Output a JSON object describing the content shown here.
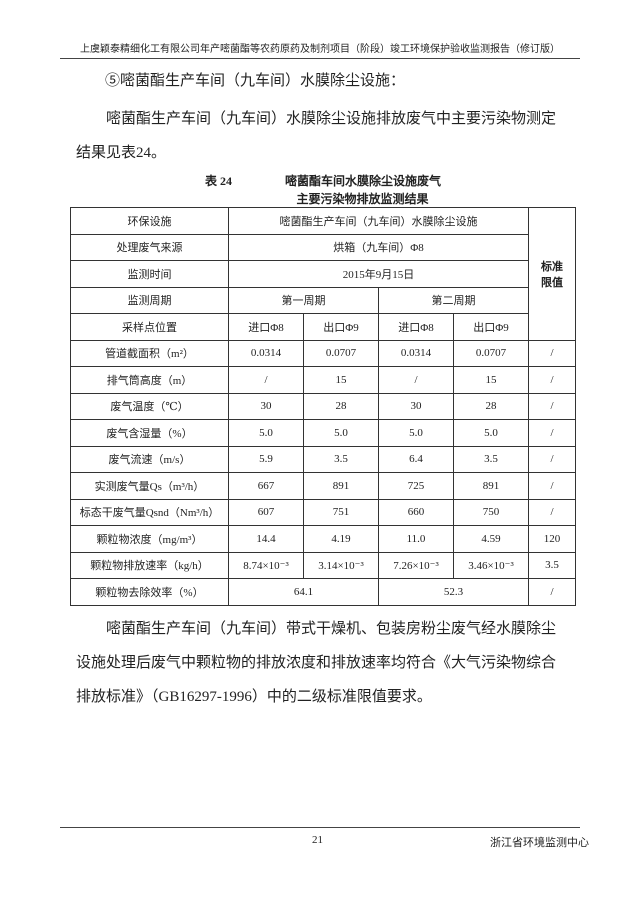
{
  "header": {
    "title": "上虞颖泰精细化工有限公司年产嘧菌酯等农药原药及制剂项目（阶段）竣工环境保护验收监测报告（修订版）"
  },
  "section": {
    "heading": "⑤嘧菌酯生产车间（九车间）水膜除尘设施：",
    "intro": "嘧菌酯生产车间（九车间）水膜除尘设施排放废气中主要污染物测定结果见表24。",
    "caption_no": "表 24",
    "caption_line1": "嘧菌酯车间水膜除尘设施废气",
    "caption_line2": "主要污染物排放监测结果",
    "conclusion": "嘧菌酯生产车间（九车间）带式干燥机、包装房粉尘废气经水膜除尘设施处理后废气中颗粒物的排放浓度和排放速率均符合《大气污染物综合排放标准》（GB16297-1996）中的二级标准限值要求。"
  },
  "table": {
    "std_header": "标准限值",
    "facility": [
      "环保设施",
      "嘧菌酯生产车间（九车间）水膜除尘设施"
    ],
    "source": [
      "处理废气来源",
      "烘箱（九车间）Φ8"
    ],
    "time": [
      "监测时间",
      "2015年9月15日"
    ],
    "period": [
      "监测周期",
      "第一周期",
      "第二周期"
    ],
    "points": [
      "采样点位置",
      "进口Φ8",
      "出口Φ9",
      "进口Φ8",
      "出口Φ9"
    ],
    "rows": [
      [
        "管道截面积（m²）",
        "0.0314",
        "0.0707",
        "0.0314",
        "0.0707",
        "/"
      ],
      [
        "排气筒高度（m）",
        "/",
        "15",
        "/",
        "15",
        "/"
      ],
      [
        "废气温度（℃）",
        "30",
        "28",
        "30",
        "28",
        "/"
      ],
      [
        "废气含湿量（%）",
        "5.0",
        "5.0",
        "5.0",
        "5.0",
        "/"
      ],
      [
        "废气流速（m/s）",
        "5.9",
        "3.5",
        "6.4",
        "3.5",
        "/"
      ],
      [
        "实测废气量Qs（m³/h）",
        "667",
        "891",
        "725",
        "891",
        "/"
      ],
      [
        "标态干废气量Qsnd（Nm³/h）",
        "607",
        "751",
        "660",
        "750",
        "/"
      ],
      [
        "颗粒物浓度（mg/m³）",
        "14.4",
        "4.19",
        "11.0",
        "4.59",
        "120"
      ],
      [
        "颗粒物排放速率（kg/h）",
        "8.74×10⁻³",
        "3.14×10⁻³",
        "7.26×10⁻³",
        "3.46×10⁻³",
        "3.5"
      ]
    ],
    "efficiency": [
      "颗粒物去除效率（%）",
      "64.1",
      "52.3",
      "/"
    ]
  },
  "footer": {
    "page": "21",
    "org": "浙江省环境监测中心"
  }
}
